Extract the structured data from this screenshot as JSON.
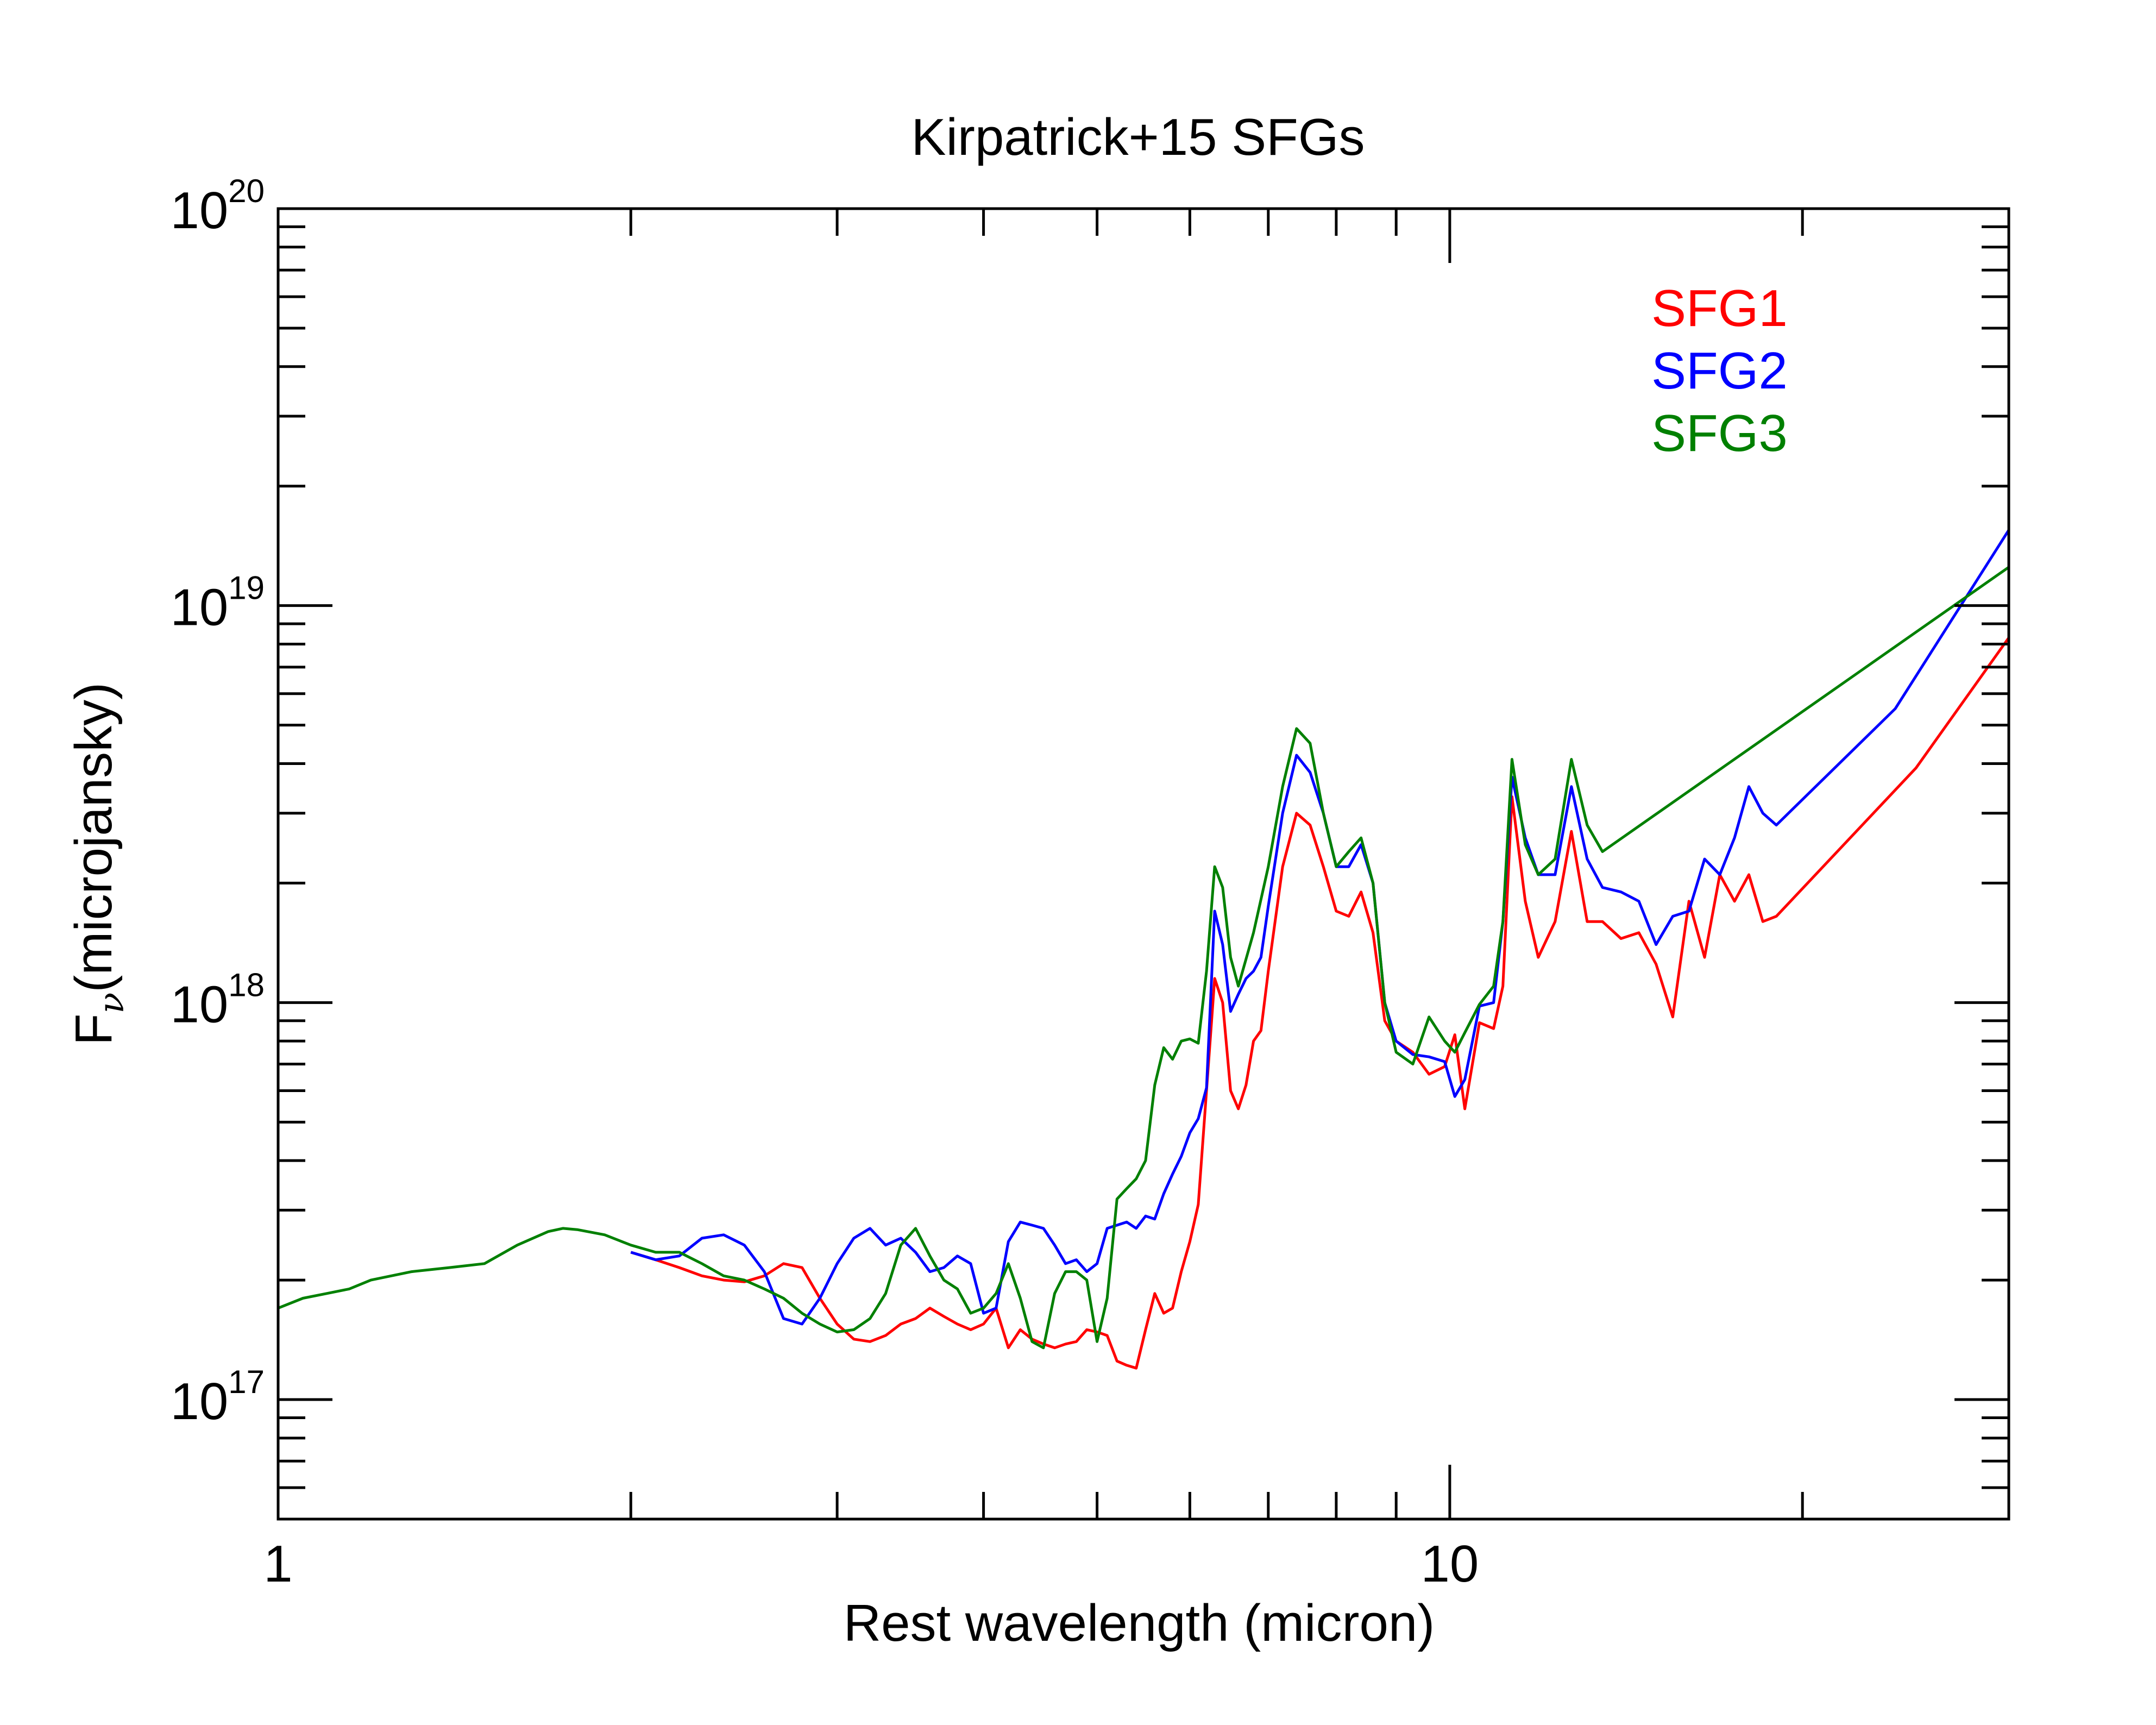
{
  "chart_data": {
    "type": "line",
    "title": "Kirpatrick+15 SFGs",
    "xlabel": "Rest wavelength (micron)",
    "ylabel": "F",
    "ylabel_subscript": "ν",
    "ylabel_unit": "(microjansky)",
    "x_scale": "log",
    "y_scale": "log",
    "xlim": [
      1,
      30
    ],
    "ylim": [
      5e+16,
      1e+20
    ],
    "x_tick_labels": [
      {
        "value": 1,
        "label": "1"
      },
      {
        "value": 10,
        "label": "10"
      }
    ],
    "y_tick_labels": [
      {
        "value": 1e+17,
        "base": "10",
        "exp": "17"
      },
      {
        "value": 1e+18,
        "base": "10",
        "exp": "18"
      },
      {
        "value": 1e+19,
        "base": "10",
        "exp": "19"
      },
      {
        "value": 1e+20,
        "base": "10",
        "exp": "20"
      }
    ],
    "legend_position": "top-right",
    "series": [
      {
        "name": "SFG1",
        "color": "#ff0000",
        "points": [
          [
            2.0,
            2.35e+17
          ],
          [
            2.1,
            2.25e+17
          ],
          [
            2.2,
            2.15e+17
          ],
          [
            2.3,
            2.05e+17
          ],
          [
            2.4,
            2e+17
          ],
          [
            2.5,
            1.98e+17
          ],
          [
            2.6,
            2.05e+17
          ],
          [
            2.7,
            2.2e+17
          ],
          [
            2.8,
            2.15e+17
          ],
          [
            2.9,
            1.8e+17
          ],
          [
            3.0,
            1.55e+17
          ],
          [
            3.1,
            1.42e+17
          ],
          [
            3.2,
            1.4e+17
          ],
          [
            3.3,
            1.45e+17
          ],
          [
            3.4,
            1.55e+17
          ],
          [
            3.5,
            1.6e+17
          ],
          [
            3.6,
            1.7e+17
          ],
          [
            3.7,
            1.62e+17
          ],
          [
            3.8,
            1.55e+17
          ],
          [
            3.9,
            1.5e+17
          ],
          [
            4.0,
            1.55e+17
          ],
          [
            4.1,
            1.7e+17
          ],
          [
            4.2,
            1.35e+17
          ],
          [
            4.3,
            1.5e+17
          ],
          [
            4.4,
            1.42e+17
          ],
          [
            4.5,
            1.38e+17
          ],
          [
            4.6,
            1.35e+17
          ],
          [
            4.7,
            1.38e+17
          ],
          [
            4.8,
            1.4e+17
          ],
          [
            4.9,
            1.5e+17
          ],
          [
            5.0,
            1.48e+17
          ],
          [
            5.1,
            1.45e+17
          ],
          [
            5.2,
            1.25e+17
          ],
          [
            5.3,
            1.22e+17
          ],
          [
            5.4,
            1.2e+17
          ],
          [
            5.5,
            1.5e+17
          ],
          [
            5.6,
            1.85e+17
          ],
          [
            5.7,
            1.65e+17
          ],
          [
            5.8,
            1.7e+17
          ],
          [
            5.9,
            2.1e+17
          ],
          [
            6.0,
            2.5e+17
          ],
          [
            6.1,
            3.1e+17
          ],
          [
            6.2,
            6e+17
          ],
          [
            6.3,
            1.15e+18
          ],
          [
            6.4,
            1e+18
          ],
          [
            6.5,
            6e+17
          ],
          [
            6.6,
            5.4e+17
          ],
          [
            6.7,
            6.2e+17
          ],
          [
            6.8,
            8e+17
          ],
          [
            6.9,
            8.5e+17
          ],
          [
            7.0,
            1.2e+18
          ],
          [
            7.2,
            2.2e+18
          ],
          [
            7.4,
            3e+18
          ],
          [
            7.6,
            2.8e+18
          ],
          [
            7.8,
            2.2e+18
          ],
          [
            8.0,
            1.7e+18
          ],
          [
            8.2,
            1.65e+18
          ],
          [
            8.4,
            1.9e+18
          ],
          [
            8.6,
            1.5e+18
          ],
          [
            8.8,
            9e+17
          ],
          [
            9.0,
            8e+17
          ],
          [
            9.3,
            7.5e+17
          ],
          [
            9.6,
            6.6e+17
          ],
          [
            9.9,
            6.9e+17
          ],
          [
            10.1,
            8.3e+17
          ],
          [
            10.3,
            5.4e+17
          ],
          [
            10.6,
            8.9e+17
          ],
          [
            10.9,
            8.6e+17
          ],
          [
            11.1,
            1.1e+18
          ],
          [
            11.3,
            3.3e+18
          ],
          [
            11.6,
            1.8e+18
          ],
          [
            11.9,
            1.3e+18
          ],
          [
            12.3,
            1.6e+18
          ],
          [
            12.7,
            2.7e+18
          ],
          [
            13.1,
            1.6e+18
          ],
          [
            13.5,
            1.6e+18
          ],
          [
            14.0,
            1.45e+18
          ],
          [
            14.5,
            1.5e+18
          ],
          [
            15.0,
            1.25e+18
          ],
          [
            15.5,
            9.2e+17
          ],
          [
            16.0,
            1.8e+18
          ],
          [
            16.5,
            1.3e+18
          ],
          [
            17.0,
            2.1e+18
          ],
          [
            17.5,
            1.8e+18
          ],
          [
            18.0,
            2.1e+18
          ],
          [
            18.5,
            1.6e+18
          ],
          [
            19.0,
            1.65e+18
          ],
          [
            25.0,
            3.9e+18
          ],
          [
            30.0,
            8.3e+18
          ]
        ]
      },
      {
        "name": "SFG2",
        "color": "#0000ff",
        "points": [
          [
            2.0,
            2.35e+17
          ],
          [
            2.1,
            2.25e+17
          ],
          [
            2.2,
            2.3e+17
          ],
          [
            2.3,
            2.55e+17
          ],
          [
            2.4,
            2.6e+17
          ],
          [
            2.5,
            2.45e+17
          ],
          [
            2.6,
            2.1e+17
          ],
          [
            2.7,
            1.6e+17
          ],
          [
            2.8,
            1.55e+17
          ],
          [
            2.9,
            1.8e+17
          ],
          [
            3.0,
            2.2e+17
          ],
          [
            3.1,
            2.55e+17
          ],
          [
            3.2,
            2.7e+17
          ],
          [
            3.3,
            2.45e+17
          ],
          [
            3.4,
            2.55e+17
          ],
          [
            3.5,
            2.35e+17
          ],
          [
            3.6,
            2.1e+17
          ],
          [
            3.7,
            2.15e+17
          ],
          [
            3.8,
            2.3e+17
          ],
          [
            3.9,
            2.2e+17
          ],
          [
            4.0,
            1.65e+17
          ],
          [
            4.1,
            1.7e+17
          ],
          [
            4.2,
            2.5e+17
          ],
          [
            4.3,
            2.8e+17
          ],
          [
            4.4,
            2.75e+17
          ],
          [
            4.5,
            2.7e+17
          ],
          [
            4.6,
            2.45e+17
          ],
          [
            4.7,
            2.2e+17
          ],
          [
            4.8,
            2.25e+17
          ],
          [
            4.9,
            2.1e+17
          ],
          [
            5.0,
            2.2e+17
          ],
          [
            5.1,
            2.7e+17
          ],
          [
            5.2,
            2.75e+17
          ],
          [
            5.3,
            2.8e+17
          ],
          [
            5.4,
            2.7e+17
          ],
          [
            5.5,
            2.9e+17
          ],
          [
            5.6,
            2.85e+17
          ],
          [
            5.7,
            3.3e+17
          ],
          [
            5.8,
            3.7e+17
          ],
          [
            5.9,
            4.1e+17
          ],
          [
            6.0,
            4.7e+17
          ],
          [
            6.1,
            5.1e+17
          ],
          [
            6.2,
            6.1e+17
          ],
          [
            6.3,
            1.7e+18
          ],
          [
            6.4,
            1.4e+18
          ],
          [
            6.5,
            9.5e+17
          ],
          [
            6.6,
            1.05e+18
          ],
          [
            6.7,
            1.15e+18
          ],
          [
            6.8,
            1.2e+18
          ],
          [
            6.9,
            1.3e+18
          ],
          [
            7.0,
            1.75e+18
          ],
          [
            7.2,
            3e+18
          ],
          [
            7.4,
            4.2e+18
          ],
          [
            7.6,
            3.8e+18
          ],
          [
            7.8,
            3e+18
          ],
          [
            8.0,
            2.2e+18
          ],
          [
            8.2,
            2.2e+18
          ],
          [
            8.4,
            2.5e+18
          ],
          [
            8.6,
            2e+18
          ],
          [
            8.8,
            1e+18
          ],
          [
            9.0,
            8e+17
          ],
          [
            9.3,
            7.4e+17
          ],
          [
            9.6,
            7.3e+17
          ],
          [
            9.9,
            7.1e+17
          ],
          [
            10.1,
            5.8e+17
          ],
          [
            10.3,
            6.4e+17
          ],
          [
            10.6,
            9.8e+17
          ],
          [
            10.9,
            1e+18
          ],
          [
            11.1,
            1.6e+18
          ],
          [
            11.3,
            3.7e+18
          ],
          [
            11.6,
            2.6e+18
          ],
          [
            11.9,
            2.1e+18
          ],
          [
            12.3,
            2.1e+18
          ],
          [
            12.7,
            3.5e+18
          ],
          [
            13.1,
            2.3e+18
          ],
          [
            13.5,
            1.95e+18
          ],
          [
            14.0,
            1.9e+18
          ],
          [
            14.5,
            1.8e+18
          ],
          [
            15.0,
            1.4e+18
          ],
          [
            15.5,
            1.65e+18
          ],
          [
            16.0,
            1.7e+18
          ],
          [
            16.5,
            2.3e+18
          ],
          [
            17.0,
            2.1e+18
          ],
          [
            17.5,
            2.6e+18
          ],
          [
            18.0,
            3.5e+18
          ],
          [
            18.5,
            3e+18
          ],
          [
            19.0,
            2.8e+18
          ],
          [
            24.0,
            5.5e+18
          ],
          [
            30.0,
            1.55e+19
          ]
        ]
      },
      {
        "name": "SFG3",
        "color": "#008000",
        "points": [
          [
            1.0,
            1.7e+17
          ],
          [
            1.05,
            1.8e+17
          ],
          [
            1.1,
            1.85e+17
          ],
          [
            1.15,
            1.9e+17
          ],
          [
            1.2,
            2e+17
          ],
          [
            1.3,
            2.1e+17
          ],
          [
            1.4,
            2.15e+17
          ],
          [
            1.5,
            2.2e+17
          ],
          [
            1.6,
            2.45e+17
          ],
          [
            1.7,
            2.65e+17
          ],
          [
            1.75,
            2.7e+17
          ],
          [
            1.8,
            2.68e+17
          ],
          [
            1.9,
            2.6e+17
          ],
          [
            2.0,
            2.45e+17
          ],
          [
            2.1,
            2.35e+17
          ],
          [
            2.2,
            2.35e+17
          ],
          [
            2.3,
            2.2e+17
          ],
          [
            2.4,
            2.05e+17
          ],
          [
            2.5,
            2e+17
          ],
          [
            2.6,
            1.9e+17
          ],
          [
            2.7,
            1.8e+17
          ],
          [
            2.8,
            1.65e+17
          ],
          [
            2.9,
            1.55e+17
          ],
          [
            3.0,
            1.48e+17
          ],
          [
            3.1,
            1.5e+17
          ],
          [
            3.2,
            1.6e+17
          ],
          [
            3.3,
            1.85e+17
          ],
          [
            3.4,
            2.45e+17
          ],
          [
            3.5,
            2.7e+17
          ],
          [
            3.6,
            2.3e+17
          ],
          [
            3.7,
            2e+17
          ],
          [
            3.8,
            1.9e+17
          ],
          [
            3.9,
            1.65e+17
          ],
          [
            4.0,
            1.7e+17
          ],
          [
            4.1,
            1.85e+17
          ],
          [
            4.2,
            2.2e+17
          ],
          [
            4.3,
            1.8e+17
          ],
          [
            4.4,
            1.4e+17
          ],
          [
            4.5,
            1.35e+17
          ],
          [
            4.6,
            1.85e+17
          ],
          [
            4.7,
            2.1e+17
          ],
          [
            4.8,
            2.1e+17
          ],
          [
            4.9,
            2e+17
          ],
          [
            5.0,
            1.4e+17
          ],
          [
            5.1,
            1.8e+17
          ],
          [
            5.2,
            3.2e+17
          ],
          [
            5.3,
            3.4e+17
          ],
          [
            5.4,
            3.6e+17
          ],
          [
            5.5,
            4e+17
          ],
          [
            5.6,
            6.2e+17
          ],
          [
            5.7,
            7.7e+17
          ],
          [
            5.8,
            7.2e+17
          ],
          [
            5.9,
            8e+17
          ],
          [
            6.0,
            8.1e+17
          ],
          [
            6.1,
            7.9e+17
          ],
          [
            6.2,
            1.2e+18
          ],
          [
            6.3,
            2.2e+18
          ],
          [
            6.4,
            1.95e+18
          ],
          [
            6.5,
            1.3e+18
          ],
          [
            6.6,
            1.1e+18
          ],
          [
            6.8,
            1.5e+18
          ],
          [
            7.0,
            2.2e+18
          ],
          [
            7.2,
            3.5e+18
          ],
          [
            7.4,
            4.9e+18
          ],
          [
            7.6,
            4.5e+18
          ],
          [
            7.8,
            3e+18
          ],
          [
            8.0,
            2.2e+18
          ],
          [
            8.2,
            2.4e+18
          ],
          [
            8.4,
            2.6e+18
          ],
          [
            8.6,
            2e+18
          ],
          [
            8.8,
            1e+18
          ],
          [
            9.0,
            7.5e+17
          ],
          [
            9.3,
            7e+17
          ],
          [
            9.6,
            9.2e+17
          ],
          [
            9.9,
            8e+17
          ],
          [
            10.1,
            7.5e+17
          ],
          [
            10.3,
            8.4e+17
          ],
          [
            10.6,
            9.9e+17
          ],
          [
            10.9,
            1.1e+18
          ],
          [
            11.1,
            1.6e+18
          ],
          [
            11.3,
            4.1e+18
          ],
          [
            11.6,
            2.5e+18
          ],
          [
            11.9,
            2.1e+18
          ],
          [
            12.3,
            2.3e+18
          ],
          [
            12.7,
            4.1e+18
          ],
          [
            13.1,
            2.8e+18
          ],
          [
            13.5,
            2.4e+18
          ],
          [
            30.0,
            1.25e+19
          ]
        ]
      }
    ]
  }
}
